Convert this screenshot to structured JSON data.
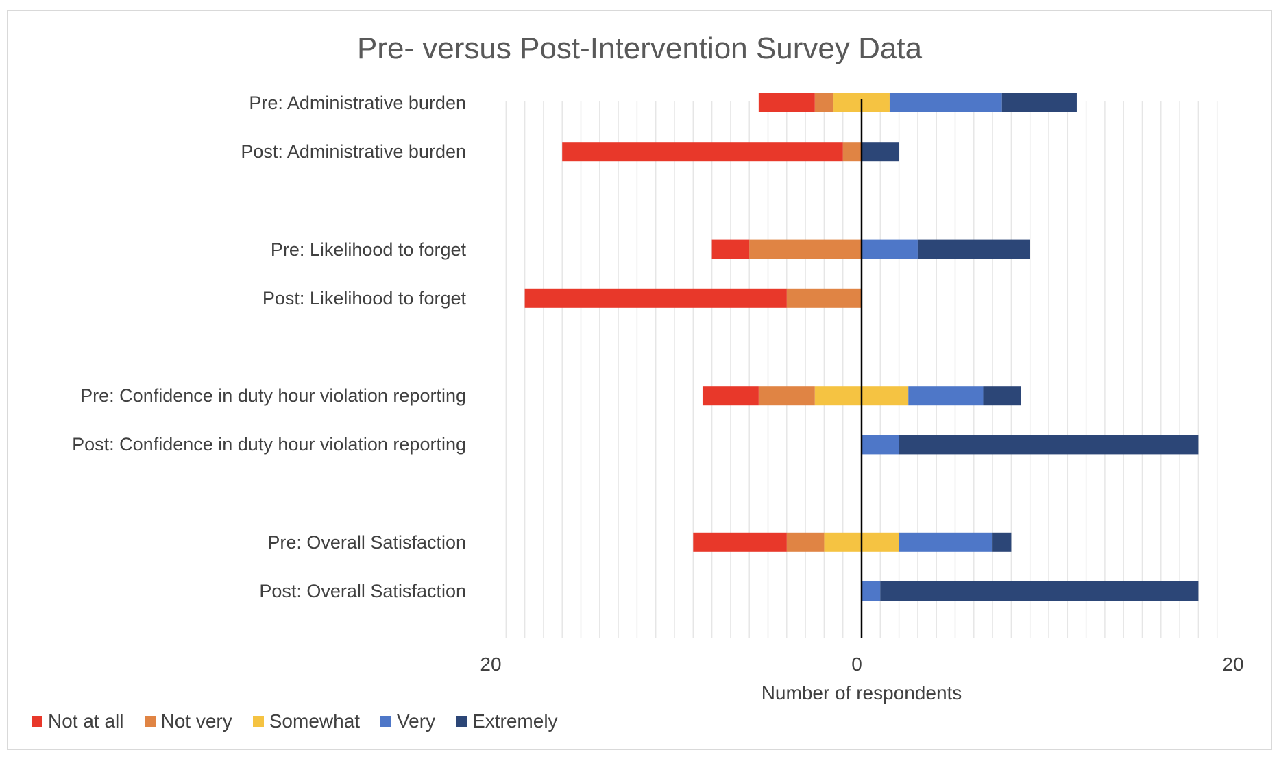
{
  "chart_data": {
    "type": "bar",
    "orientation": "horizontal",
    "stacking": "diverging",
    "title": "Pre- versus Post-Intervention Survey Data",
    "xlabel": "Number of respondents",
    "ylabel": "",
    "xlim": [
      -19,
      19
    ],
    "x_tick_labels": [
      {
        "value": -20,
        "label": "20"
      },
      {
        "value": 0,
        "label": "0"
      },
      {
        "value": 20,
        "label": "20"
      }
    ],
    "grid": "vertical minor gridlines",
    "legend_position": "bottom-left",
    "categories": [
      "Pre: Administrative burden",
      "Post: Administrative burden",
      "",
      "Pre: Likelihood to forget",
      "Post: Likelihood to forget",
      "",
      "Pre: Confidence in duty hour violation reporting",
      "Post: Confidence in duty hour violation reporting",
      "",
      "Pre: Overall Satisfaction",
      "Post: Overall Satisfaction"
    ],
    "series": [
      {
        "name": "Not at all",
        "color": "#e8382a",
        "side": "negative",
        "values": [
          3,
          15,
          null,
          2,
          14,
          null,
          3,
          0,
          null,
          5,
          0
        ]
      },
      {
        "name": "Not very",
        "color": "#e08444",
        "side": "negative",
        "values": [
          1,
          1,
          null,
          6,
          4,
          null,
          3,
          0,
          null,
          2,
          0
        ]
      },
      {
        "name": "Somewhat",
        "color": "#f5c342",
        "side": "split",
        "values": [
          3,
          0,
          null,
          0,
          0,
          null,
          5,
          0,
          null,
          4,
          0
        ]
      },
      {
        "name": "Very",
        "color": "#4e77c8",
        "side": "positive",
        "values": [
          6,
          0,
          null,
          3,
          0,
          null,
          4,
          2,
          null,
          5,
          1
        ]
      },
      {
        "name": "Extremely",
        "color": "#2c4677",
        "side": "positive",
        "values": [
          4,
          2,
          null,
          6,
          0,
          null,
          2,
          16,
          null,
          1,
          17
        ]
      }
    ]
  }
}
